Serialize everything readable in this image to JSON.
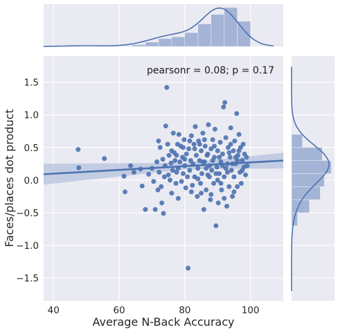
{
  "chart_data": {
    "type": "scatter",
    "xlabel": "Average N-Back Accuracy",
    "ylabel": "Faces/places dot product",
    "annotation": "pearsonr = 0.08; p = 0.17",
    "xlim": [
      37,
      110
    ],
    "ylim": [
      -1.85,
      1.9
    ],
    "xticks": [
      "40",
      "60",
      "80",
      "100"
    ],
    "xtick_values": [
      40,
      60,
      80,
      100
    ],
    "yticks": [
      "1.5",
      "1.0",
      "0.5",
      "0.0",
      "−0.5",
      "−1.0",
      "−1.5"
    ],
    "ytick_values": [
      1.5,
      1.0,
      0.5,
      0.0,
      -0.5,
      -1.0,
      -1.5
    ],
    "grid": true,
    "background_color": "#eaeaf2",
    "point_color": "#4c72b0",
    "regression": {
      "x": [
        37,
        110
      ],
      "y": [
        0.09,
        0.3
      ],
      "ci_color": "#b4c2dc"
    },
    "marginal_x_hist": {
      "bin_edges": [
        60,
        64,
        68,
        72,
        76,
        80,
        84,
        88,
        92,
        96,
        100
      ],
      "density": [
        0.0002,
        0.002,
        0.005,
        0.009,
        0.011,
        0.016,
        0.026,
        0.037,
        0.045,
        0.029
      ]
    },
    "marginal_y_hist": {
      "bin_edges": [
        -0.7,
        -0.5,
        -0.3,
        -0.1,
        0.1,
        0.3,
        0.5,
        0.7
      ],
      "density": [
        0.3,
        0.9,
        1.45,
        1.65,
        2.0,
        1.55,
        0.55
      ]
    },
    "points": [
      [
        47.5,
        0.47
      ],
      [
        47.7,
        0.19
      ],
      [
        55.5,
        0.33
      ],
      [
        61.5,
        0.06
      ],
      [
        61.8,
        -0.18
      ],
      [
        63.5,
        0.22
      ],
      [
        64.5,
        0.12
      ],
      [
        66.5,
        0.17
      ],
      [
        67.0,
        -0.09
      ],
      [
        68.0,
        -0.45
      ],
      [
        69.0,
        0.09
      ],
      [
        70.0,
        0.18
      ],
      [
        70.5,
        -0.02
      ],
      [
        71.0,
        -0.45
      ],
      [
        71.5,
        0.28
      ],
      [
        71.8,
        -0.15
      ],
      [
        72.0,
        0.6
      ],
      [
        72.2,
        0.12
      ],
      [
        72.5,
        0.5
      ],
      [
        72.8,
        -0.1
      ],
      [
        73.0,
        -0.35
      ],
      [
        73.3,
        0.32
      ],
      [
        73.5,
        -0.51
      ],
      [
        73.8,
        0.05
      ],
      [
        74.0,
        0.22
      ],
      [
        74.2,
        0.83
      ],
      [
        74.5,
        1.42
      ],
      [
        74.8,
        0.55
      ],
      [
        75.0,
        0.08
      ],
      [
        75.2,
        0.38
      ],
      [
        75.5,
        0.0
      ],
      [
        75.8,
        0.26
      ],
      [
        76.0,
        -0.2
      ],
      [
        76.3,
        0.15
      ],
      [
        76.5,
        0.72
      ],
      [
        76.8,
        0.42
      ],
      [
        77.0,
        0.3
      ],
      [
        77.3,
        -0.05
      ],
      [
        77.5,
        0.12
      ],
      [
        77.8,
        0.55
      ],
      [
        78.0,
        0.18
      ],
      [
        78.2,
        0.7
      ],
      [
        78.5,
        0.28
      ],
      [
        78.8,
        0.52
      ],
      [
        79.0,
        -0.02
      ],
      [
        79.3,
        0.35
      ],
      [
        79.5,
        0.1
      ],
      [
        79.8,
        0.62
      ],
      [
        80.0,
        0.22
      ],
      [
        80.3,
        -0.12
      ],
      [
        80.5,
        0.4
      ],
      [
        80.8,
        0.05
      ],
      [
        81.0,
        -1.35
      ],
      [
        81.2,
        0.48
      ],
      [
        81.5,
        0.15
      ],
      [
        81.8,
        0.3
      ],
      [
        82.0,
        0.68
      ],
      [
        82.3,
        -0.08
      ],
      [
        82.5,
        0.25
      ],
      [
        82.8,
        0.55
      ],
      [
        83.0,
        0.05
      ],
      [
        83.2,
        0.82
      ],
      [
        83.5,
        0.38
      ],
      [
        83.8,
        -0.25
      ],
      [
        84.0,
        0.18
      ],
      [
        84.2,
        0.6
      ],
      [
        84.5,
        0.3
      ],
      [
        84.8,
        -0.05
      ],
      [
        85.0,
        0.45
      ],
      [
        85.2,
        0.1
      ],
      [
        85.5,
        0.72
      ],
      [
        85.8,
        -0.45
      ],
      [
        86.0,
        0.28
      ],
      [
        86.2,
        0.52
      ],
      [
        86.5,
        -0.15
      ],
      [
        86.8,
        0.38
      ],
      [
        87.0,
        0.08
      ],
      [
        87.2,
        0.85
      ],
      [
        87.5,
        0.22
      ],
      [
        87.8,
        -0.3
      ],
      [
        88.0,
        0.48
      ],
      [
        88.2,
        0.15
      ],
      [
        88.5,
        0.62
      ],
      [
        88.8,
        -0.05
      ],
      [
        89.0,
        0.35
      ],
      [
        89.2,
        0.78
      ],
      [
        89.5,
        -0.7
      ],
      [
        89.8,
        0.2
      ],
      [
        90.0,
        0.45
      ],
      [
        90.2,
        -0.35
      ],
      [
        90.5,
        0.1
      ],
      [
        90.8,
        0.58
      ],
      [
        91.0,
        0.28
      ],
      [
        91.2,
        -0.15
      ],
      [
        91.5,
        0.4
      ],
      [
        91.8,
        1.12
      ],
      [
        92.0,
        0.05
      ],
      [
        92.2,
        1.19
      ],
      [
        92.5,
        0.65
      ],
      [
        92.8,
        -0.4
      ],
      [
        93.0,
        0.25
      ],
      [
        93.2,
        0.5
      ],
      [
        93.5,
        -0.1
      ],
      [
        93.8,
        0.35
      ],
      [
        94.0,
        0.8
      ],
      [
        94.2,
        0.15
      ],
      [
        94.5,
        -0.25
      ],
      [
        94.8,
        0.45
      ],
      [
        95.0,
        0.05
      ],
      [
        95.2,
        0.6
      ],
      [
        95.5,
        0.25
      ],
      [
        95.8,
        1.02
      ],
      [
        96.0,
        -0.1
      ],
      [
        96.2,
        0.38
      ],
      [
        96.5,
        0.7
      ],
      [
        96.8,
        0.12
      ],
      [
        97.0,
        0.5
      ],
      [
        97.2,
        -0.05
      ],
      [
        97.5,
        0.3
      ],
      [
        97.8,
        0.55
      ],
      [
        98.0,
        0.2
      ],
      [
        98.2,
        0.4
      ],
      [
        98.5,
        0.08
      ],
      [
        98.8,
        0.35
      ],
      [
        99.0,
        0.22
      ],
      [
        86.5,
        0.18
      ],
      [
        88.0,
        -0.22
      ],
      [
        90.0,
        0.0
      ],
      [
        84.0,
        0.02
      ],
      [
        92.0,
        -0.28
      ],
      [
        82.0,
        -0.18
      ],
      [
        94.0,
        0.55
      ],
      [
        96.0,
        0.3
      ],
      [
        89.0,
        0.52
      ],
      [
        91.0,
        -0.05
      ],
      [
        87.0,
        0.4
      ],
      [
        85.0,
        -0.2
      ],
      [
        93.0,
        0.12
      ],
      [
        95.0,
        -0.18
      ],
      [
        83.0,
        0.48
      ],
      [
        80.0,
        0.32
      ],
      [
        78.0,
        -0.28
      ],
      [
        76.0,
        0.45
      ],
      [
        88.5,
        0.3
      ],
      [
        90.5,
        0.35
      ],
      [
        92.5,
        0.18
      ],
      [
        94.5,
        0.25
      ],
      [
        86.0,
        0.62
      ],
      [
        84.5,
        0.55
      ],
      [
        96.5,
        0.45
      ],
      [
        97.5,
        0.15
      ],
      [
        81.5,
        0.6
      ],
      [
        79.5,
        0.5
      ],
      [
        77.5,
        0.38
      ],
      [
        89.5,
        0.1
      ],
      [
        91.5,
        0.22
      ],
      [
        93.5,
        0.42
      ],
      [
        95.5,
        0.35
      ],
      [
        87.5,
        0.05
      ],
      [
        85.5,
        0.28
      ]
    ]
  }
}
